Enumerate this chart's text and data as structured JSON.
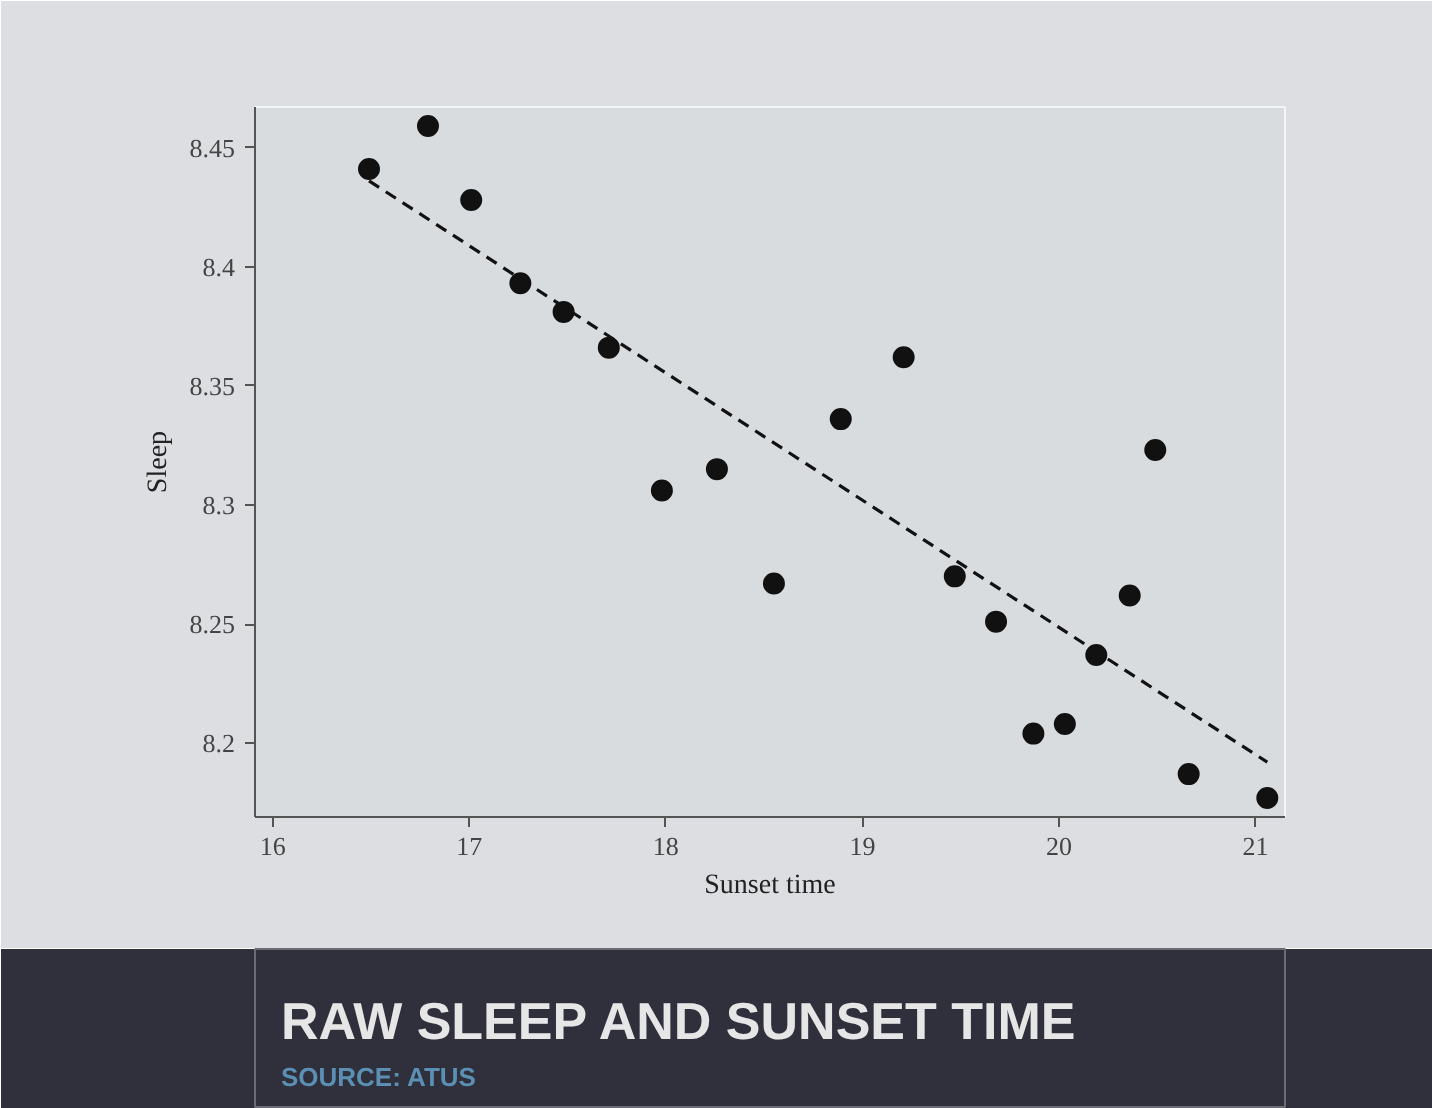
{
  "chart_data": {
    "type": "scatter",
    "title": "RAW SLEEP AND SUNSET TIME",
    "annotations": [
      "SOURCE: ATUS"
    ],
    "xlabel": "Sunset time",
    "ylabel": "Sleep",
    "series": [
      {
        "color": "#111111",
        "marker": "circle",
        "x": [
          16.49,
          16.79,
          17.01,
          17.26,
          17.48,
          17.71,
          17.98,
          18.26,
          18.55,
          18.89,
          19.21,
          19.47,
          19.68,
          19.87,
          20.03,
          20.19,
          20.36,
          20.49,
          20.66,
          21.06
        ],
        "values": [
          8.441,
          8.459,
          8.428,
          8.393,
          8.381,
          8.366,
          8.306,
          8.315,
          8.267,
          8.336,
          8.362,
          8.27,
          8.251,
          8.204,
          8.208,
          8.237,
          8.262,
          8.323,
          8.187,
          8.177
        ]
      },
      {
        "type": "line",
        "color": "#111111",
        "line_style": "dashed",
        "marker": "none",
        "x": [
          16.49,
          21.06
        ],
        "values": [
          8.436,
          8.192
        ]
      }
    ],
    "xlim": [
      15.91,
      21.15
    ],
    "ylim": [
      8.169,
      8.467
    ],
    "xticks": [
      16,
      17,
      18,
      19,
      20,
      21
    ],
    "yticks": [
      8.2,
      8.25,
      8.3,
      8.35,
      8.4,
      8.45
    ],
    "grid": false
  }
}
